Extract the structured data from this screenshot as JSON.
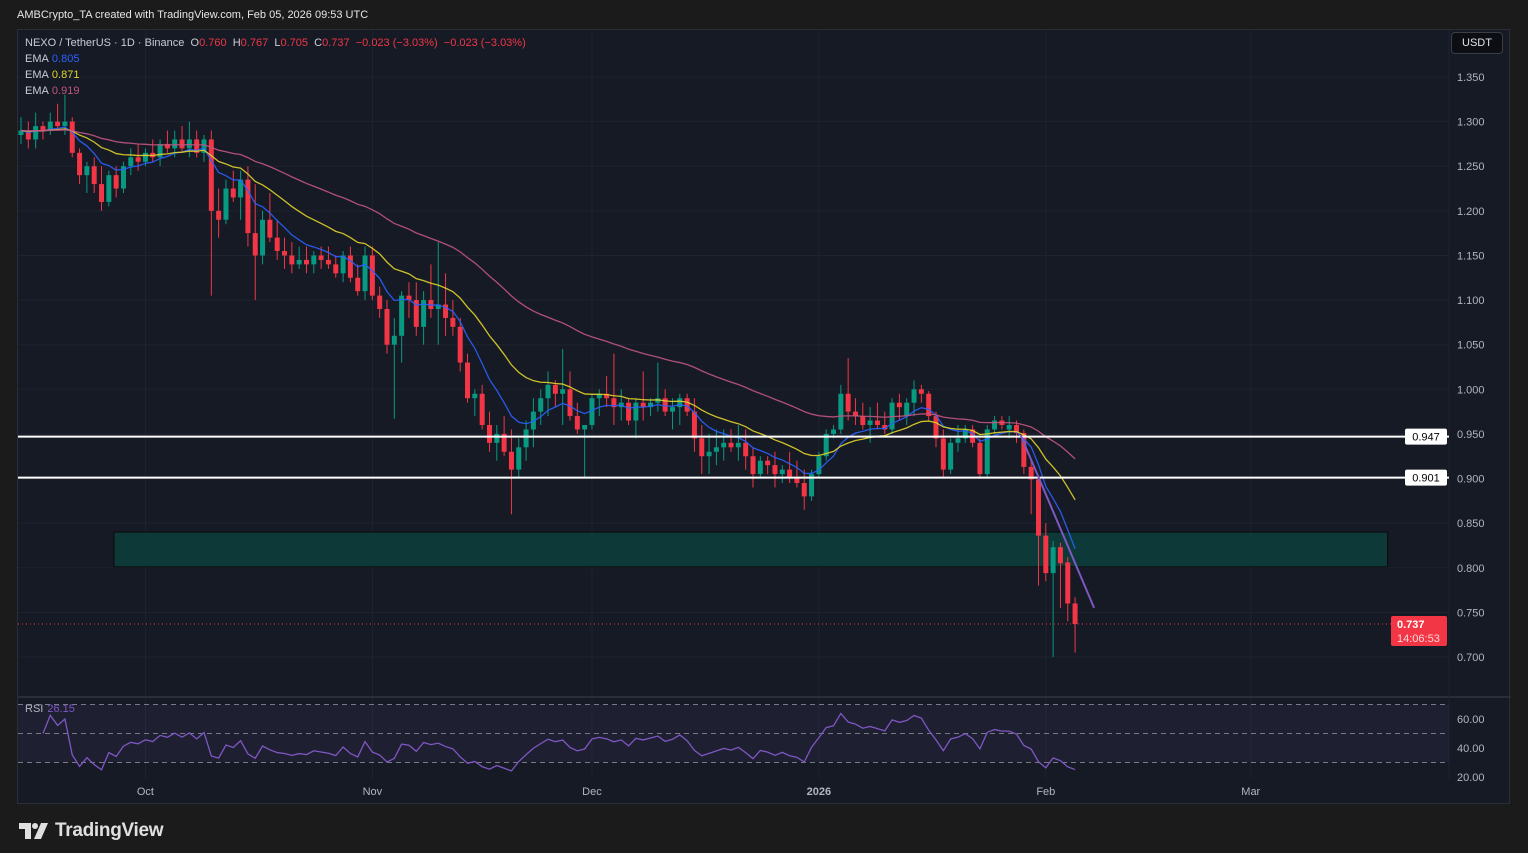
{
  "caption": "AMBCrypto_TA created with TradingView.com, Feb 05, 2026 09:53 UTC",
  "legend": {
    "symbol": "NEXO / TetherUS · 1D · Binance",
    "o_label": "O",
    "o": "0.760",
    "h_label": "H",
    "h": "0.767",
    "l_label": "L",
    "l": "0.705",
    "c_label": "C",
    "c": "0.737",
    "change1": "−0.023 (−3.03%)",
    "change2": "−0.023 (−3.03%)",
    "emas": [
      {
        "label": "EMA",
        "value": "0.805",
        "color": "#2962ff"
      },
      {
        "label": "EMA",
        "value": "0.871",
        "color": "#e2d42a"
      },
      {
        "label": "EMA",
        "value": "0.919",
        "color": "#c2557f"
      }
    ]
  },
  "currency_button": "USDT",
  "rsi": {
    "label": "RSI",
    "value": "26.15",
    "color": "#7e57c2",
    "period": 14,
    "ticks": [
      "60.00",
      "40.00",
      "20.00"
    ],
    "tick_values": [
      60,
      40,
      20
    ],
    "bands": [
      70,
      50,
      30
    ]
  },
  "current_price": {
    "value": "0.737",
    "countdown": "14:06:53",
    "color": "#f23645"
  },
  "levels": [
    {
      "value": 0.947,
      "label": "0.947"
    },
    {
      "value": 0.901,
      "label": "0.901"
    }
  ],
  "brand": "TradingView",
  "chart_data": {
    "type": "candlestick",
    "title": "NEXO / TetherUS · 1D · Binance",
    "start_date": "2025-09-14",
    "end_date": "2026-02-05",
    "ylim": [
      0.68,
      1.38
    ],
    "y_ticks": [
      "1.350",
      "1.300",
      "1.250",
      "1.200",
      "1.150",
      "1.100",
      "1.050",
      "1.000",
      "0.950",
      "0.900",
      "0.850",
      "0.800",
      "0.750",
      "0.700"
    ],
    "x_ticks": [
      {
        "label": "Oct",
        "day": 17
      },
      {
        "label": "Nov",
        "day": 48
      },
      {
        "label": "Dec",
        "day": 78
      },
      {
        "label": "2026",
        "day": 109,
        "bold": true
      },
      {
        "label": "Feb",
        "day": 140
      },
      {
        "label": "Mar",
        "day": 168
      }
    ],
    "colors": {
      "up": "#089981",
      "down": "#f23645"
    },
    "ema_periods": [
      9,
      21,
      50
    ],
    "support_zone": {
      "from_day": 12.7,
      "to_day": 186.7,
      "low": 0.801,
      "high": 0.84,
      "color": "#0d3a38"
    },
    "trendline": {
      "from": {
        "day": 136.6,
        "price": 0.948
      },
      "to": {
        "day": 146.6,
        "price": 0.755
      },
      "color": "#7e57c2"
    },
    "ohlc": [
      [
        1.285,
        1.305,
        1.275,
        1.29
      ],
      [
        1.29,
        1.3,
        1.27,
        1.28
      ],
      [
        1.28,
        1.31,
        1.27,
        1.295
      ],
      [
        1.295,
        1.3,
        1.28,
        1.29
      ],
      [
        1.29,
        1.31,
        1.285,
        1.3
      ],
      [
        1.3,
        1.32,
        1.29,
        1.295
      ],
      [
        1.295,
        1.33,
        1.285,
        1.3
      ],
      [
        1.3,
        1.305,
        1.26,
        1.265
      ],
      [
        1.265,
        1.27,
        1.23,
        1.24
      ],
      [
        1.24,
        1.255,
        1.22,
        1.25
      ],
      [
        1.25,
        1.26,
        1.22,
        1.23
      ],
      [
        1.23,
        1.25,
        1.2,
        1.21
      ],
      [
        1.21,
        1.245,
        1.205,
        1.24
      ],
      [
        1.24,
        1.25,
        1.215,
        1.225
      ],
      [
        1.225,
        1.255,
        1.22,
        1.25
      ],
      [
        1.25,
        1.27,
        1.24,
        1.26
      ],
      [
        1.26,
        1.275,
        1.245,
        1.255
      ],
      [
        1.255,
        1.27,
        1.25,
        1.265
      ],
      [
        1.265,
        1.28,
        1.255,
        1.26
      ],
      [
        1.26,
        1.28,
        1.25,
        1.275
      ],
      [
        1.275,
        1.29,
        1.265,
        1.27
      ],
      [
        1.27,
        1.29,
        1.26,
        1.28
      ],
      [
        1.28,
        1.295,
        1.265,
        1.27
      ],
      [
        1.27,
        1.3,
        1.26,
        1.28
      ],
      [
        1.28,
        1.29,
        1.26,
        1.265
      ],
      [
        1.265,
        1.285,
        1.255,
        1.28
      ],
      [
        1.28,
        1.29,
        1.105,
        1.2
      ],
      [
        1.2,
        1.225,
        1.17,
        1.19
      ],
      [
        1.19,
        1.235,
        1.185,
        1.225
      ],
      [
        1.225,
        1.245,
        1.21,
        1.215
      ],
      [
        1.215,
        1.245,
        1.19,
        1.235
      ],
      [
        1.235,
        1.25,
        1.16,
        1.175
      ],
      [
        1.175,
        1.23,
        1.1,
        1.15
      ],
      [
        1.15,
        1.2,
        1.14,
        1.19
      ],
      [
        1.19,
        1.22,
        1.165,
        1.17
      ],
      [
        1.17,
        1.19,
        1.145,
        1.155
      ],
      [
        1.155,
        1.17,
        1.135,
        1.15
      ],
      [
        1.15,
        1.165,
        1.13,
        1.14
      ],
      [
        1.14,
        1.16,
        1.135,
        1.145
      ],
      [
        1.145,
        1.16,
        1.13,
        1.14
      ],
      [
        1.14,
        1.155,
        1.13,
        1.15
      ],
      [
        1.15,
        1.16,
        1.135,
        1.145
      ],
      [
        1.145,
        1.16,
        1.135,
        1.14
      ],
      [
        1.14,
        1.15,
        1.125,
        1.13
      ],
      [
        1.13,
        1.155,
        1.12,
        1.15
      ],
      [
        1.15,
        1.16,
        1.12,
        1.125
      ],
      [
        1.125,
        1.14,
        1.105,
        1.11
      ],
      [
        1.11,
        1.16,
        1.1,
        1.15
      ],
      [
        1.15,
        1.16,
        1.1,
        1.105
      ],
      [
        1.105,
        1.115,
        1.08,
        1.09
      ],
      [
        1.09,
        1.1,
        1.04,
        1.05
      ],
      [
        1.05,
        1.08,
        0.967,
        1.06
      ],
      [
        1.06,
        1.11,
        1.03,
        1.105
      ],
      [
        1.105,
        1.12,
        1.08,
        1.1
      ],
      [
        1.1,
        1.12,
        1.06,
        1.07
      ],
      [
        1.07,
        1.11,
        1.05,
        1.1
      ],
      [
        1.1,
        1.14,
        1.08,
        1.09
      ],
      [
        1.09,
        1.165,
        1.05,
        1.095
      ],
      [
        1.095,
        1.13,
        1.06,
        1.08
      ],
      [
        1.08,
        1.1,
        1.06,
        1.07
      ],
      [
        1.07,
        1.08,
        1.02,
        1.03
      ],
      [
        1.03,
        1.04,
        0.985,
        0.99
      ],
      [
        0.99,
        1.0,
        0.97,
        0.995
      ],
      [
        0.995,
        1.005,
        0.955,
        0.96
      ],
      [
        0.96,
        0.975,
        0.93,
        0.94
      ],
      [
        0.94,
        0.96,
        0.92,
        0.95
      ],
      [
        0.95,
        0.97,
        0.925,
        0.93
      ],
      [
        0.93,
        0.955,
        0.86,
        0.91
      ],
      [
        0.91,
        0.945,
        0.9,
        0.935
      ],
      [
        0.935,
        0.965,
        0.92,
        0.955
      ],
      [
        0.955,
        0.99,
        0.935,
        0.975
      ],
      [
        0.975,
        1.0,
        0.96,
        0.99
      ],
      [
        0.99,
        1.02,
        0.97,
        1.005
      ],
      [
        1.005,
        1.01,
        0.98,
        0.995
      ],
      [
        0.995,
        1.045,
        0.96,
        1.0
      ],
      [
        1.0,
        1.02,
        0.965,
        0.97
      ],
      [
        0.97,
        0.985,
        0.95,
        0.955
      ],
      [
        0.955,
        0.96,
        0.9,
        0.96
      ],
      [
        0.96,
        0.995,
        0.955,
        0.99
      ],
      [
        0.99,
        1.0,
        0.97,
        0.995
      ],
      [
        0.995,
        1.015,
        0.98,
        0.99
      ],
      [
        0.99,
        1.04,
        0.96,
        0.98
      ],
      [
        0.98,
        1.0,
        0.965,
        0.985
      ],
      [
        0.985,
        0.99,
        0.96,
        0.965
      ],
      [
        0.965,
        0.99,
        0.945,
        0.985
      ],
      [
        0.985,
        1.02,
        0.965,
        0.98
      ],
      [
        0.98,
        0.99,
        0.97,
        0.985
      ],
      [
        0.985,
        1.03,
        0.975,
        0.99
      ],
      [
        0.99,
        1.0,
        0.97,
        0.975
      ],
      [
        0.975,
        0.99,
        0.955,
        0.98
      ],
      [
        0.98,
        0.995,
        0.96,
        0.99
      ],
      [
        0.99,
        0.995,
        0.97,
        0.975
      ],
      [
        0.975,
        0.99,
        0.93,
        0.945
      ],
      [
        0.945,
        0.96,
        0.905,
        0.925
      ],
      [
        0.925,
        0.95,
        0.905,
        0.93
      ],
      [
        0.93,
        0.955,
        0.915,
        0.935
      ],
      [
        0.935,
        0.955,
        0.92,
        0.94
      ],
      [
        0.94,
        0.955,
        0.93,
        0.935
      ],
      [
        0.935,
        0.96,
        0.92,
        0.94
      ],
      [
        0.94,
        0.955,
        0.91,
        0.925
      ],
      [
        0.925,
        0.935,
        0.89,
        0.905
      ],
      [
        0.905,
        0.925,
        0.9,
        0.92
      ],
      [
        0.92,
        0.925,
        0.905,
        0.915
      ],
      [
        0.915,
        0.93,
        0.89,
        0.905
      ],
      [
        0.905,
        0.915,
        0.895,
        0.91
      ],
      [
        0.91,
        0.93,
        0.895,
        0.9
      ],
      [
        0.9,
        0.92,
        0.89,
        0.895
      ],
      [
        0.895,
        0.91,
        0.865,
        0.88
      ],
      [
        0.88,
        0.91,
        0.875,
        0.905
      ],
      [
        0.905,
        0.93,
        0.9,
        0.925
      ],
      [
        0.925,
        0.955,
        0.92,
        0.95
      ],
      [
        0.95,
        0.96,
        0.945,
        0.955
      ],
      [
        0.955,
        1.005,
        0.95,
        0.995
      ],
      [
        0.995,
        1.035,
        0.965,
        0.975
      ],
      [
        0.975,
        0.99,
        0.96,
        0.97
      ],
      [
        0.97,
        0.985,
        0.955,
        0.96
      ],
      [
        0.96,
        0.98,
        0.94,
        0.965
      ],
      [
        0.965,
        0.985,
        0.955,
        0.96
      ],
      [
        0.96,
        0.975,
        0.95,
        0.955
      ],
      [
        0.955,
        0.99,
        0.95,
        0.985
      ],
      [
        0.985,
        0.995,
        0.965,
        0.98
      ],
      [
        0.97,
        0.99,
        0.96,
        0.985
      ],
      [
        0.985,
        1.01,
        0.97,
        1.0
      ],
      [
        1.0,
        1.005,
        0.985,
        0.995
      ],
      [
        0.995,
        0.998,
        0.965,
        0.97
      ],
      [
        0.97,
        0.975,
        0.935,
        0.945
      ],
      [
        0.945,
        0.955,
        0.9,
        0.91
      ],
      [
        0.91,
        0.945,
        0.905,
        0.94
      ],
      [
        0.94,
        0.96,
        0.93,
        0.945
      ],
      [
        0.945,
        0.96,
        0.94,
        0.955
      ],
      [
        0.955,
        0.96,
        0.935,
        0.94
      ],
      [
        0.94,
        0.945,
        0.9,
        0.905
      ],
      [
        0.905,
        0.96,
        0.9,
        0.955
      ],
      [
        0.955,
        0.97,
        0.95,
        0.965
      ],
      [
        0.965,
        0.97,
        0.955,
        0.96
      ],
      [
        0.955,
        0.97,
        0.945,
        0.96
      ],
      [
        0.96,
        0.965,
        0.94,
        0.951
      ],
      [
        0.951,
        0.955,
        0.905,
        0.913
      ],
      [
        0.913,
        0.92,
        0.86,
        0.899
      ],
      [
        0.899,
        0.9,
        0.78,
        0.836
      ],
      [
        0.836,
        0.85,
        0.785,
        0.794
      ],
      [
        0.794,
        0.83,
        0.7,
        0.823
      ],
      [
        0.823,
        0.828,
        0.755,
        0.805
      ],
      [
        0.806,
        0.812,
        0.74,
        0.76
      ],
      [
        0.76,
        0.767,
        0.705,
        0.737
      ]
    ]
  }
}
